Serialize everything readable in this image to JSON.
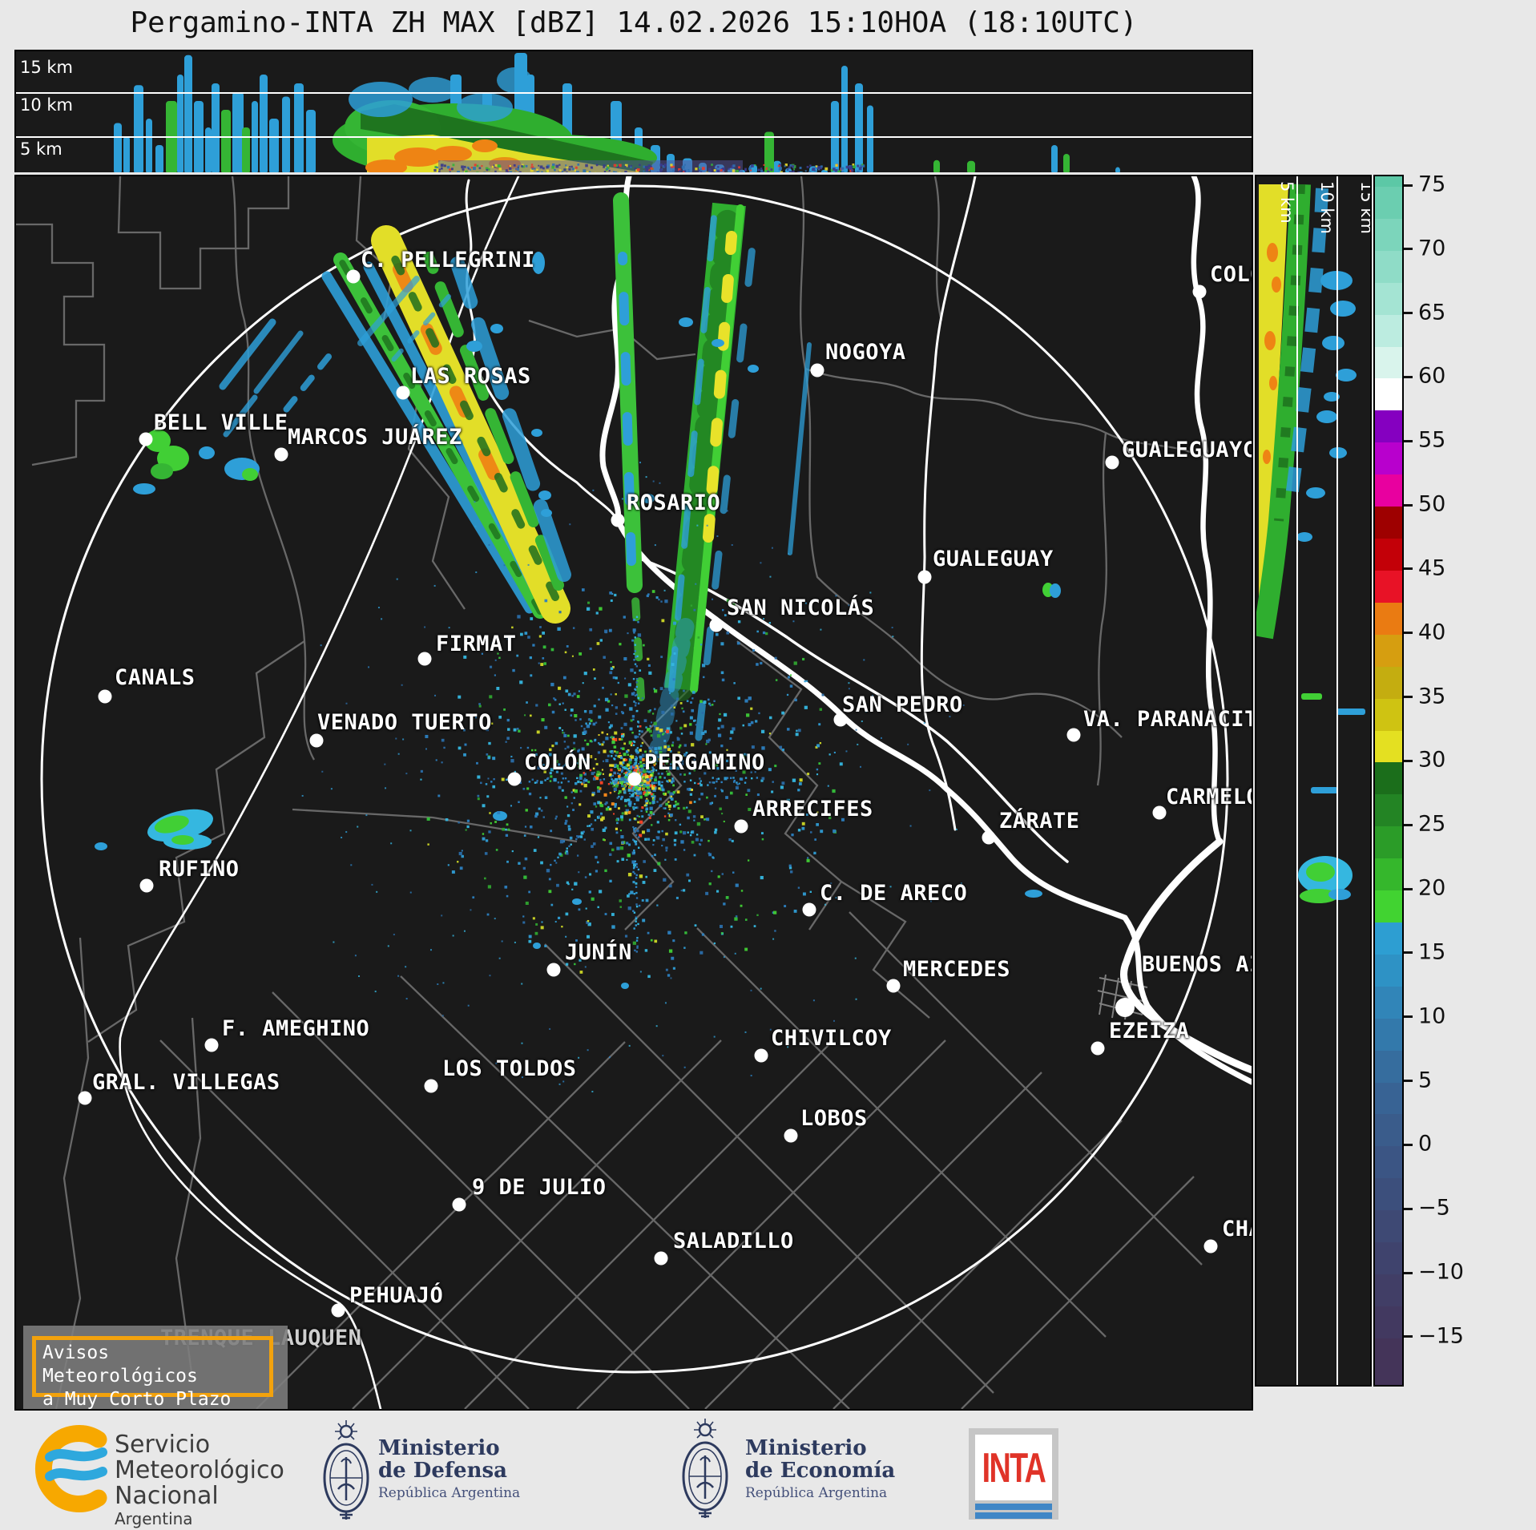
{
  "title": "Pergamino-INTA ZH MAX [dBZ] 14.02.2026 15:10HOA (18:10UTC)",
  "panels": {
    "top": {
      "alt_labels": [
        "15 km",
        "10 km",
        "5 km"
      ],
      "columns": [
        [
          122,
          10,
          6.5
        ],
        [
          134,
          8,
          5
        ],
        [
          147,
          12,
          10.8
        ],
        [
          162,
          8,
          7
        ],
        [
          174,
          10,
          4
        ],
        [
          187,
          14,
          9,
          "g"
        ],
        [
          201,
          8,
          12
        ],
        [
          210,
          10,
          14.2
        ],
        [
          222,
          12,
          9
        ],
        [
          236,
          8,
          6
        ],
        [
          244,
          10,
          11
        ],
        [
          256,
          12,
          8,
          "g"
        ],
        [
          270,
          14,
          10
        ],
        [
          282,
          10,
          6,
          "g"
        ],
        [
          294,
          8,
          9
        ],
        [
          304,
          10,
          12
        ],
        [
          316,
          12,
          7
        ],
        [
          332,
          10,
          9.5
        ],
        [
          347,
          12,
          11
        ],
        [
          362,
          12,
          8
        ],
        [
          542,
          14,
          12
        ],
        [
          582,
          12,
          10
        ],
        [
          622,
          16,
          14.6
        ],
        [
          637,
          10,
          12
        ],
        [
          682,
          12,
          11
        ],
        [
          742,
          14,
          9
        ],
        [
          772,
          10,
          6
        ],
        [
          792,
          12,
          4
        ],
        [
          812,
          10,
          3
        ],
        [
          832,
          12,
          2.5
        ],
        [
          852,
          10,
          2
        ],
        [
          872,
          12,
          1.8
        ],
        [
          888,
          10,
          1.4
        ],
        [
          902,
          8,
          1.2
        ],
        [
          915,
          10,
          1.8
        ],
        [
          930,
          8,
          1
        ],
        [
          945,
          10,
          2.2
        ],
        [
          960,
          8,
          1.4
        ],
        [
          975,
          8,
          1
        ],
        [
          990,
          10,
          1.6
        ],
        [
          1005,
          8,
          1.2
        ],
        [
          1017,
          10,
          9
        ],
        [
          1030,
          8,
          13
        ],
        [
          1047,
          10,
          11
        ],
        [
          1062,
          8,
          8.5
        ],
        [
          934,
          12,
          5.5,
          "g"
        ],
        [
          1145,
          8,
          2.3,
          "g"
        ],
        [
          1187,
          10,
          2.2,
          "g"
        ],
        [
          1292,
          8,
          4
        ],
        [
          1307,
          8,
          3,
          "g"
        ],
        [
          1372,
          6,
          1.5
        ]
      ]
    },
    "side": {
      "alt_labels": [
        "5 km",
        "10 km",
        "15 km"
      ]
    }
  },
  "colorbar": {
    "unit": "dBZ",
    "ticks": [
      {
        "v": 75,
        "label": "75"
      },
      {
        "v": 70,
        "label": "70"
      },
      {
        "v": 65,
        "label": "65"
      },
      {
        "v": 60,
        "label": "60"
      },
      {
        "v": 55,
        "label": "55"
      },
      {
        "v": 50,
        "label": "50"
      },
      {
        "v": 45,
        "label": "45"
      },
      {
        "v": 40,
        "label": "40"
      },
      {
        "v": 35,
        "label": "35"
      },
      {
        "v": 30,
        "label": "30"
      },
      {
        "v": 25,
        "label": "25"
      },
      {
        "v": 20,
        "label": "20"
      },
      {
        "v": 15,
        "label": "15"
      },
      {
        "v": 10,
        "label": "10"
      },
      {
        "v": 5,
        "label": "5"
      },
      {
        "v": 0,
        "label": "0"
      },
      {
        "v": -5,
        "label": "−5"
      },
      {
        "v": -10,
        "label": "−10"
      },
      {
        "v": -15,
        "label": "−15"
      }
    ],
    "bands": [
      [
        76.6,
        75,
        "#5cc8a6"
      ],
      [
        75,
        72.5,
        "#6bceb0"
      ],
      [
        72.5,
        70,
        "#7cd5bb"
      ],
      [
        70,
        67.5,
        "#8fdcc7"
      ],
      [
        67.5,
        65,
        "#a4e4d3"
      ],
      [
        65,
        62.5,
        "#bcece0"
      ],
      [
        62.5,
        60,
        "#d9f4ec"
      ],
      [
        60,
        57.5,
        "#ffffff"
      ],
      [
        57.5,
        55,
        "#8500c0"
      ],
      [
        55,
        52.5,
        "#b800cd"
      ],
      [
        52.5,
        50,
        "#e8009f"
      ],
      [
        50,
        47.5,
        "#9e0000"
      ],
      [
        47.5,
        45,
        "#c30008"
      ],
      [
        45,
        42.5,
        "#e81226"
      ],
      [
        42.5,
        40,
        "#ea7b12"
      ],
      [
        40,
        37.5,
        "#d69e10"
      ],
      [
        37.5,
        35,
        "#c4ad10"
      ],
      [
        35,
        32.5,
        "#cfc312"
      ],
      [
        32.5,
        30,
        "#e4e021"
      ],
      [
        30,
        27.5,
        "#1b6e1b"
      ],
      [
        27.5,
        25,
        "#238424"
      ],
      [
        25,
        22.5,
        "#2b9c28"
      ],
      [
        22.5,
        20,
        "#35b72c"
      ],
      [
        20,
        17.5,
        "#41d331"
      ],
      [
        17.5,
        15,
        "#2d9ed2"
      ],
      [
        15,
        12.5,
        "#2e92c5"
      ],
      [
        12.5,
        10,
        "#3185b8"
      ],
      [
        10,
        7.5,
        "#3379ab"
      ],
      [
        7.5,
        5,
        "#366d9e"
      ],
      [
        5,
        2.5,
        "#386394"
      ],
      [
        2.5,
        0,
        "#3a5c8b"
      ],
      [
        0,
        -2.5,
        "#3b5584"
      ],
      [
        -2.5,
        -5,
        "#3c4f7c"
      ],
      [
        -5,
        -7.5,
        "#3e4974"
      ],
      [
        -7.5,
        -10,
        "#3f436d"
      ],
      [
        -10,
        -12.5,
        "#413e66"
      ],
      [
        -12.5,
        -15,
        "#423960"
      ],
      [
        -15,
        -18.9,
        "#443459"
      ]
    ]
  },
  "map": {
    "radar_site": "PERGAMINO",
    "cities": [
      {
        "n": "C. PELLEGRINI",
        "t": [
          430,
          105
        ],
        "d": [
          421,
          125
        ]
      },
      {
        "n": "LAS ROSAS",
        "t": [
          492,
          250
        ],
        "d": [
          483,
          270
        ]
      },
      {
        "n": "BELL VILLE",
        "t": [
          172,
          308
        ],
        "d": [
          162,
          328
        ]
      },
      {
        "n": "MARCOS JUÁREZ",
        "t": [
          339,
          326
        ],
        "d": [
          331,
          347
        ]
      },
      {
        "n": "NOGOYA",
        "t": [
          1010,
          220
        ],
        "d": [
          1000,
          242
        ]
      },
      {
        "n": "COLÓN",
        "t": [
          1490,
          123
        ],
        "d": [
          1477,
          144
        ]
      },
      {
        "n": "ROSARIO",
        "t": [
          762,
          408
        ],
        "d": [
          751,
          429
        ]
      },
      {
        "n": "GUALEGUAYCHÚ",
        "t": [
          1380,
          342
        ],
        "d": [
          1368,
          357
        ]
      },
      {
        "n": "GUALEGUAY",
        "t": [
          1144,
          478
        ],
        "d": [
          1134,
          500
        ]
      },
      {
        "n": "SAN NICOLÁS",
        "t": [
          887,
          539
        ],
        "d": [
          874,
          560
        ]
      },
      {
        "n": "FIRMAT",
        "t": [
          524,
          584
        ],
        "d": [
          510,
          602
        ]
      },
      {
        "n": "CANALS",
        "t": [
          123,
          626
        ],
        "d": [
          111,
          649
        ]
      },
      {
        "n": "VENADO TUERTO",
        "t": [
          376,
          682
        ],
        "d": [
          375,
          704
        ]
      },
      {
        "n": "SAN PEDRO",
        "t": [
          1031,
          660
        ],
        "d": [
          1029,
          678
        ]
      },
      {
        "n": "VA. PARANACITO",
        "t": [
          1332,
          678
        ],
        "d": [
          1320,
          697
        ]
      },
      {
        "n": "COLÓN",
        "t": [
          634,
          732
        ],
        "d": [
          622,
          752
        ]
      },
      {
        "n": "PERGAMINO",
        "t": [
          784,
          732
        ],
        "d": [
          772,
          752
        ]
      },
      {
        "n": "ARRECIFES",
        "t": [
          919,
          790
        ],
        "d": [
          905,
          811
        ]
      },
      {
        "n": "CARMELO",
        "t": [
          1435,
          775
        ],
        "d": [
          1427,
          794
        ]
      },
      {
        "n": "ZÁRATE",
        "t": [
          1227,
          805
        ],
        "d": [
          1214,
          825
        ]
      },
      {
        "n": "RUFINO",
        "t": [
          178,
          865
        ],
        "d": [
          163,
          885
        ]
      },
      {
        "n": "C. DE ARECO",
        "t": [
          1003,
          895
        ],
        "d": [
          990,
          915
        ]
      },
      {
        "n": "JUNÍN",
        "t": [
          685,
          969
        ],
        "d": [
          671,
          990
        ]
      },
      {
        "n": "MERCEDES",
        "t": [
          1107,
          990
        ],
        "d": [
          1095,
          1010
        ]
      },
      {
        "n": "BUENOS AIRES",
        "t": [
          1405,
          984
        ],
        "d": [
          1384,
          1037
        ],
        "big": true
      },
      {
        "n": "EZEIZA",
        "t": [
          1364,
          1067
        ],
        "d": [
          1350,
          1088
        ]
      },
      {
        "n": "F. AMEGHINO",
        "t": [
          257,
          1064
        ],
        "d": [
          244,
          1084
        ]
      },
      {
        "n": "CHIVILCOY",
        "t": [
          942,
          1076
        ],
        "d": [
          930,
          1097
        ]
      },
      {
        "n": "GRAL. VILLEGAS",
        "t": [
          95,
          1131
        ],
        "d": [
          86,
          1150
        ]
      },
      {
        "n": "LOS TOLDOS",
        "t": [
          532,
          1114
        ],
        "d": [
          518,
          1135
        ]
      },
      {
        "n": "LOBOS",
        "t": [
          979,
          1176
        ],
        "d": [
          967,
          1197
        ]
      },
      {
        "n": "9 DE JULIO",
        "t": [
          569,
          1262
        ],
        "d": [
          553,
          1283
        ]
      },
      {
        "n": "SALADILLO",
        "t": [
          820,
          1329
        ],
        "d": [
          805,
          1350
        ]
      },
      {
        "n": "CHASCOMÚS",
        "t": [
          1505,
          1314
        ],
        "d": [
          1491,
          1335
        ]
      },
      {
        "n": "PEHUAJÓ",
        "t": [
          416,
          1397
        ],
        "d": [
          402,
          1415
        ]
      },
      {
        "n": "TRENQUE LAUQUEN",
        "t": [
          180,
          1450
        ],
        "under": true
      }
    ]
  },
  "notice": {
    "line1": "Avisos Meteorológicos",
    "line2": "a Muy Corto Plazo"
  },
  "footer": {
    "smn": {
      "l1": "Servicio",
      "l2": "Meteorológico",
      "l3": "Nacional",
      "l4": "Argentina"
    },
    "defensa": {
      "l1": "Ministerio",
      "l2": "de Defensa",
      "l3": "República Argentina"
    },
    "economia": {
      "l1": "Ministerio",
      "l2": "de Economía",
      "l3": "República Argentina"
    },
    "inta": "INTA"
  }
}
